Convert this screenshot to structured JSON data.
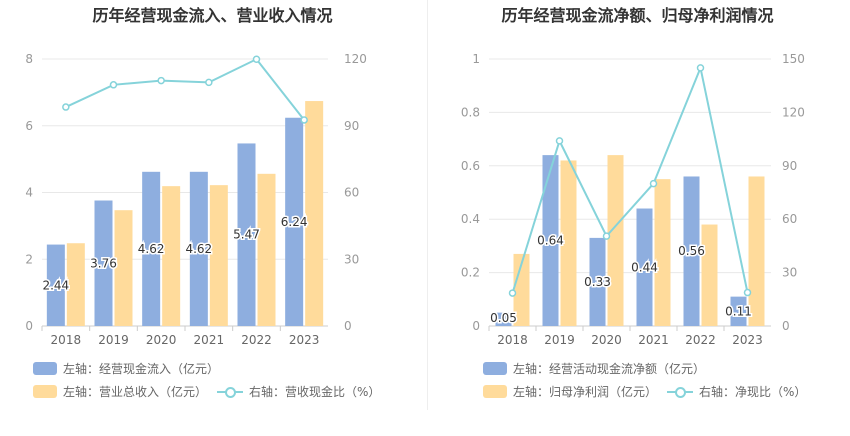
{
  "colors": {
    "bar_blue": "#8eaedf",
    "bar_yellow": "#ffdb9b",
    "line": "#85d3da",
    "grid": "#e8e8e8",
    "axis_text": "#999999"
  },
  "chart_data": [
    {
      "type": "bar+line",
      "title": "历年经营现金流入、营业收入情况",
      "categories": [
        "2018",
        "2019",
        "2020",
        "2021",
        "2022",
        "2023"
      ],
      "left_axis": {
        "ylim": [
          0,
          8
        ],
        "ticks": [
          "0",
          "2",
          "4",
          "6",
          "8"
        ]
      },
      "right_axis": {
        "ylim": [
          0,
          120
        ],
        "ticks": [
          "0",
          "30",
          "60",
          "90",
          "120"
        ]
      },
      "series": [
        {
          "name": "左轴：经营现金流入（亿元）",
          "type": "bar",
          "axis": "left",
          "values": [
            2.44,
            3.76,
            4.62,
            4.62,
            5.47,
            6.24
          ],
          "labels": [
            "2.44",
            "3.76",
            "4.62",
            "4.62",
            "5.47",
            "6.24"
          ]
        },
        {
          "name": "左轴：营业总收入（亿元）",
          "type": "bar",
          "axis": "left",
          "values": [
            2.48,
            3.47,
            4.19,
            4.22,
            4.56,
            6.74
          ]
        },
        {
          "name": "右轴：营收现金比（%）",
          "type": "line",
          "axis": "right",
          "values": [
            98.4,
            108.4,
            110.3,
            109.5,
            119.9,
            92.6
          ]
        }
      ]
    },
    {
      "type": "bar+line",
      "title": "历年经营现金流净额、归母净利润情况",
      "categories": [
        "2018",
        "2019",
        "2020",
        "2021",
        "2022",
        "2023"
      ],
      "left_axis": {
        "ylim": [
          0,
          1
        ],
        "ticks": [
          "0",
          "0.2",
          "0.4",
          "0.6",
          "0.8",
          "1"
        ]
      },
      "right_axis": {
        "ylim": [
          0,
          150
        ],
        "ticks": [
          "0",
          "30",
          "60",
          "90",
          "120",
          "150"
        ]
      },
      "series": [
        {
          "name": "左轴：经营活动现金流净额（亿元）",
          "type": "bar",
          "axis": "left",
          "values": [
            0.05,
            0.64,
            0.33,
            0.44,
            0.56,
            0.11
          ],
          "labels": [
            "0.05",
            "0.64",
            "0.33",
            "0.44",
            "0.56",
            "0.11"
          ]
        },
        {
          "name": "左轴：归母净利润（亿元）",
          "type": "bar",
          "axis": "left",
          "values": [
            0.27,
            0.62,
            0.64,
            0.55,
            0.38,
            0.56
          ]
        },
        {
          "name": "右轴：净现比（%）",
          "type": "line",
          "axis": "right",
          "values": [
            18.5,
            104.0,
            50.5,
            80.0,
            145.0,
            18.8
          ]
        }
      ]
    }
  ]
}
